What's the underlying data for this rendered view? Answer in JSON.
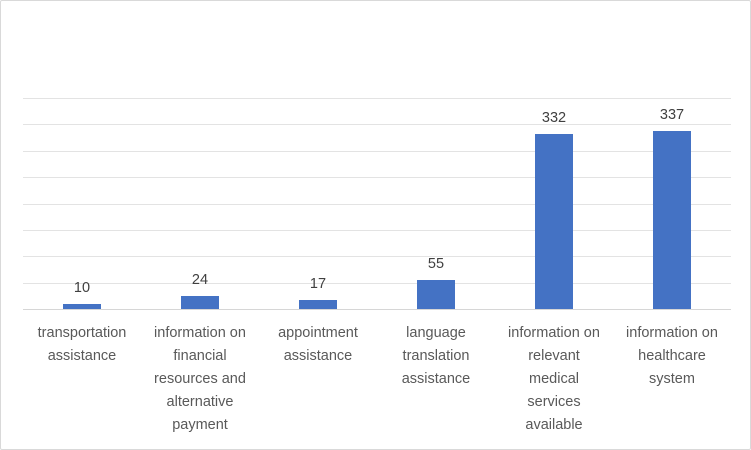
{
  "chart_data": {
    "type": "bar",
    "title": "",
    "xlabel": "",
    "ylabel": "",
    "categories": [
      "transportation assistance",
      "information on financial resources and alternative payment",
      "appointment assistance",
      "language translation assistance",
      "information on relevant medical services available",
      "information on healthcare system"
    ],
    "category_label_lines": [
      "transportation\nassistance",
      "information on\nfinancial\nresources and\nalternative\npayment",
      "appointment\nassistance",
      "language\ntranslation\nassistance",
      "information on\nrelevant\nmedical\nservices\navailable",
      "information on\nhealthcare\nsystem"
    ],
    "values": [
      10,
      24,
      17,
      55,
      332,
      337
    ],
    "ylim": [
      0,
      400
    ],
    "gridline_step": 50,
    "grid": true,
    "legend_position": "none",
    "y_axis_tick_labels_visible": false,
    "colors": {
      "bar": "#4472C4",
      "data_label": "#404040",
      "category_label": "#595959",
      "gridline": "#E3E3E3",
      "axis_line": "#D6D6D6",
      "frame_border": "#D9D9D9",
      "background": "#FFFFFF"
    }
  }
}
